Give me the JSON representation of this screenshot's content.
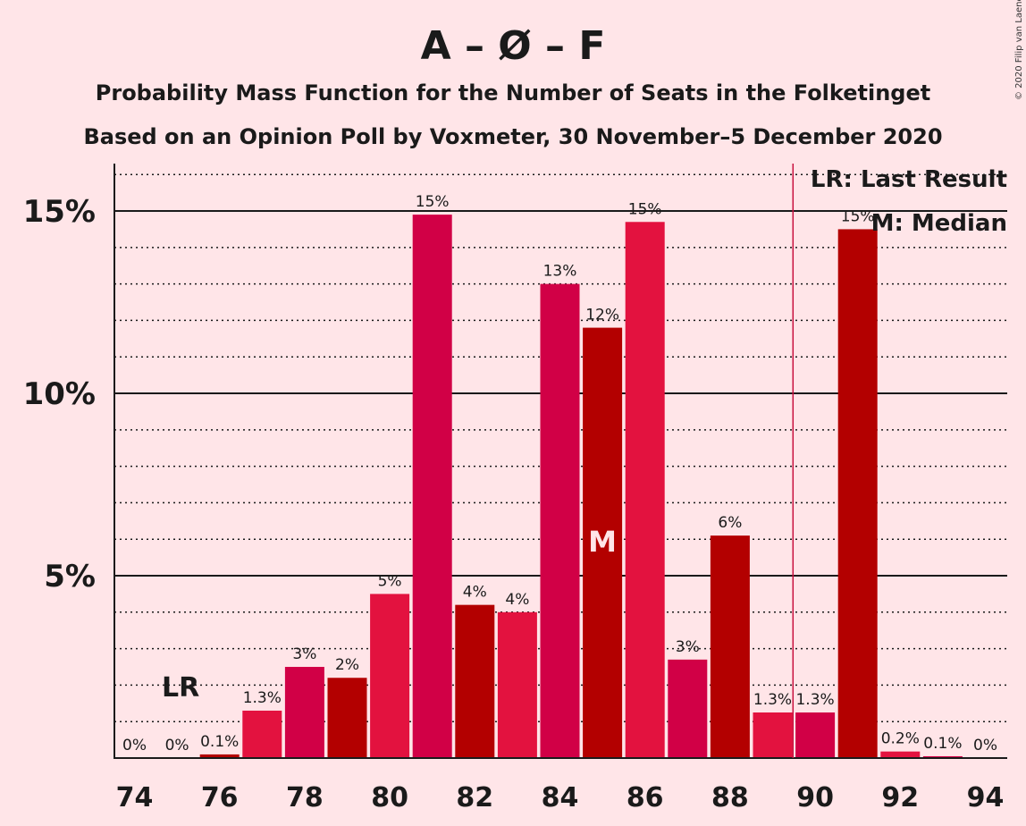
{
  "copyright": "© 2020 Filip van Laenen",
  "chart_data": {
    "type": "bar",
    "title": "A – Ø – F",
    "subtitle_line1": "Probability Mass Function for the Number of Seats in the Folketinget",
    "subtitle_line2": "Based on an Opinion Poll by Voxmeter, 30 November–5 December 2020",
    "x": [
      74,
      75,
      76,
      77,
      78,
      79,
      80,
      81,
      82,
      83,
      84,
      85,
      86,
      87,
      88,
      89,
      90,
      91,
      92,
      93,
      94
    ],
    "values": [
      0,
      0,
      0.1,
      1.3,
      2.5,
      2.2,
      4.5,
      14.9,
      4.2,
      4.0,
      13.0,
      11.8,
      14.7,
      2.7,
      6.1,
      1.25,
      1.25,
      14.5,
      0.18,
      0.05,
      0
    ],
    "labels": [
      "0%",
      "0%",
      "0.1%",
      "1.3%",
      "3%",
      "2%",
      "5%",
      "15%",
      "4%",
      "4%",
      "13%",
      "12%",
      "15%",
      "3%",
      "6%",
      "1.3%",
      "1.3%",
      "15%",
      "0.2%",
      "0.1%",
      "0%"
    ],
    "xticks": [
      74,
      76,
      78,
      80,
      82,
      84,
      86,
      88,
      90,
      92,
      94
    ],
    "yticks": [
      {
        "value": 5,
        "label": "5%"
      },
      {
        "value": 10,
        "label": "10%"
      },
      {
        "value": 15,
        "label": "15%"
      }
    ],
    "ylim": [
      0,
      16.3
    ],
    "minor_gridlines_every": 1,
    "last_result": {
      "seat": 75,
      "label": "LR"
    },
    "median": {
      "seat": 85,
      "label": "M"
    },
    "majority_line_between": [
      89,
      90
    ],
    "legend": {
      "placement": "top-right",
      "items": [
        "LR: Last Result",
        "M: Median"
      ]
    },
    "colors": [
      "#E3123F",
      "#D10046",
      "#B30000"
    ],
    "majority_line_color": "#C8103E"
  }
}
